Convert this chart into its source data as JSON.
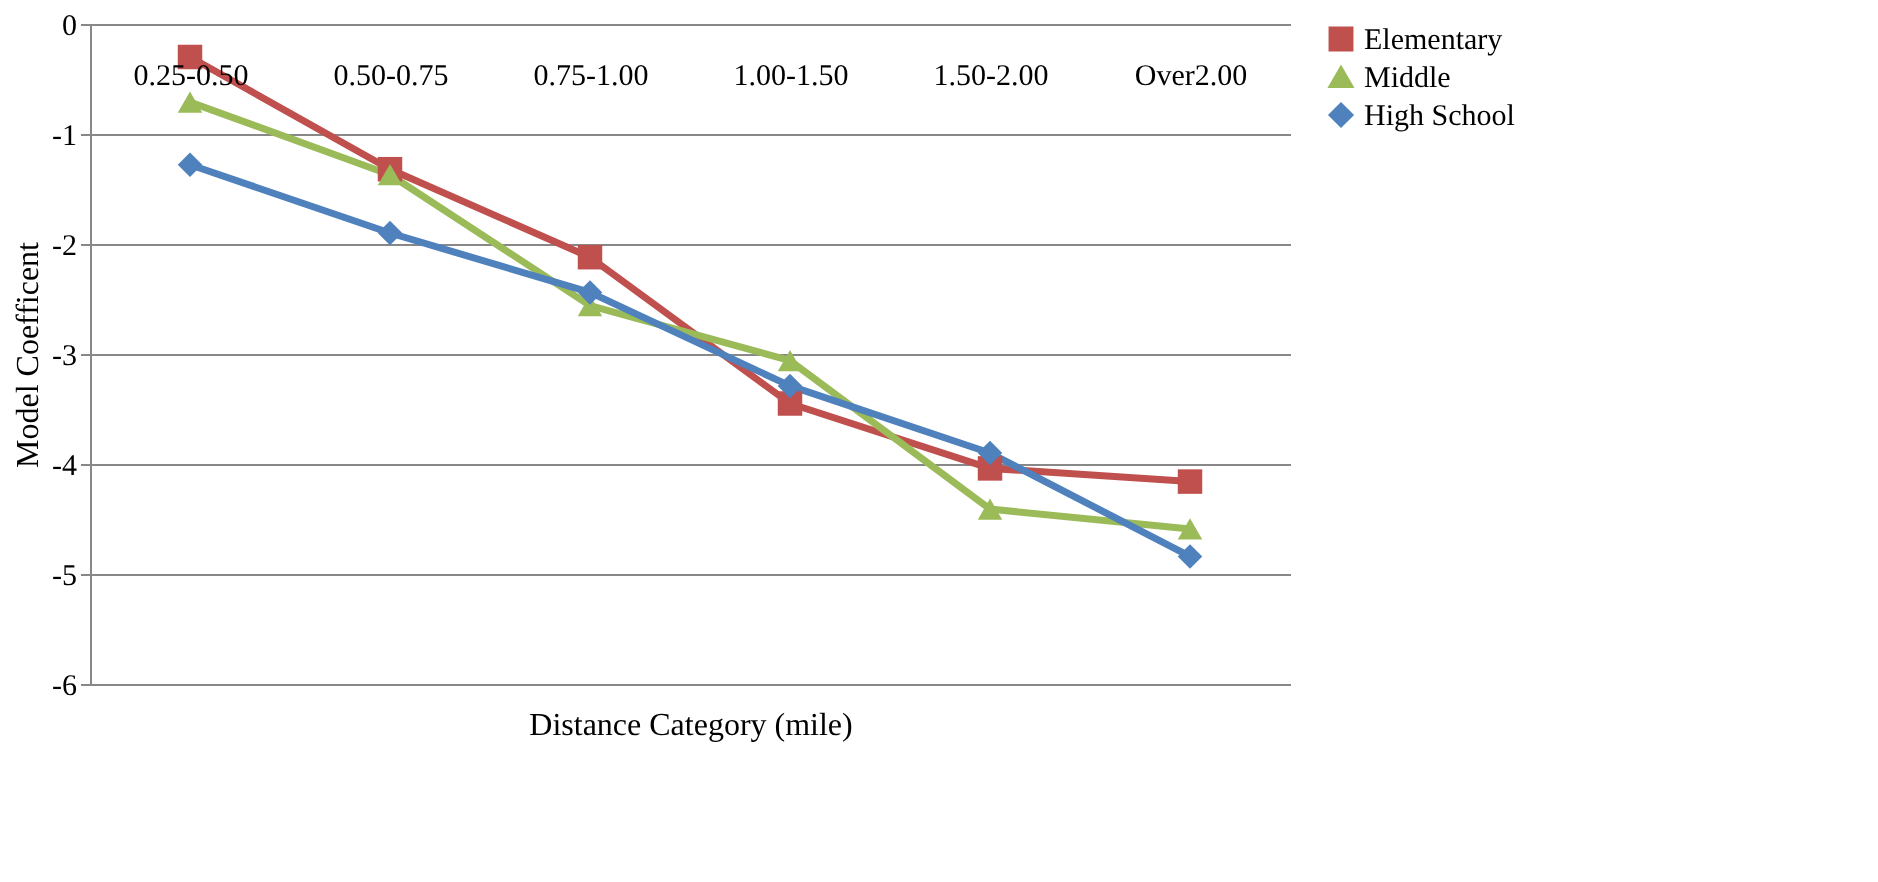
{
  "chart_data": {
    "type": "line",
    "categories": [
      "0.25-0.50",
      "0.50-0.75",
      "0.75-1.00",
      "1.00-1.50",
      "1.50-2.00",
      "Over2.00"
    ],
    "xlabel": "Distance Category (mile)",
    "ylabel": "Model Coefficent",
    "ylim": [
      -6,
      0
    ],
    "yticks": [
      -6,
      -5,
      -4,
      -3,
      -2,
      -1,
      0
    ],
    "grid": "y",
    "legend": "right",
    "series": [
      {
        "name": "Elementary",
        "color": "#c0504d",
        "marker": "square",
        "values": [
          -0.3,
          -1.32,
          -2.12,
          -3.45,
          -4.04,
          -4.16
        ]
      },
      {
        "name": "Middle",
        "color": "#9bbb59",
        "marker": "triangle",
        "values": [
          -0.71,
          -1.37,
          -2.56,
          -3.06,
          -4.41,
          -4.59
        ]
      },
      {
        "name": "High School",
        "color": "#4f81bd",
        "marker": "diamond",
        "values": [
          -1.28,
          -1.9,
          -2.44,
          -3.29,
          -3.9,
          -4.84
        ]
      }
    ]
  }
}
